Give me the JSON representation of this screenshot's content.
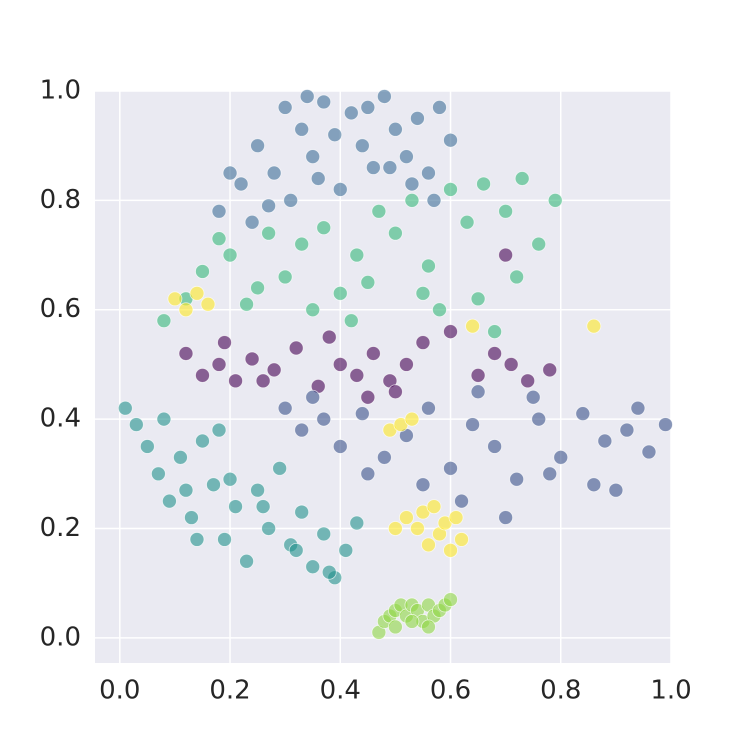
{
  "chart_data": {
    "type": "scatter",
    "xlim": [
      -0.045,
      1.0
    ],
    "ylim": [
      -0.046,
      1.0
    ],
    "xticks": [
      {
        "value": 0,
        "label": "0.0"
      },
      0.2,
      0.4,
      0.6,
      0.8,
      {
        "value": 1,
        "label": "1.0"
      }
    ],
    "yticks": [
      {
        "value": 0,
        "label": "0.0"
      },
      0.2,
      0.4,
      0.6,
      0.8,
      {
        "value": 1,
        "label": "1.0"
      }
    ],
    "grid": true,
    "series": [
      {
        "color": "#3e6e98",
        "x": [
          0.18,
          0.22,
          0.25,
          0.28,
          0.3,
          0.33,
          0.35,
          0.37,
          0.4,
          0.42,
          0.44,
          0.46,
          0.48,
          0.5,
          0.52,
          0.54,
          0.56,
          0.58,
          0.6,
          0.27,
          0.31,
          0.36,
          0.39,
          0.45,
          0.49,
          0.53,
          0.2,
          0.24,
          0.34,
          0.57
        ],
        "values": [
          0.78,
          0.83,
          0.9,
          0.85,
          0.97,
          0.93,
          0.88,
          0.98,
          0.82,
          0.96,
          0.9,
          0.86,
          0.99,
          0.93,
          0.88,
          0.95,
          0.85,
          0.97,
          0.91,
          0.79,
          0.8,
          0.84,
          0.92,
          0.97,
          0.86,
          0.83,
          0.85,
          0.76,
          0.99,
          0.8
        ]
      },
      {
        "color": "#35b779",
        "x": [
          0.08,
          0.12,
          0.15,
          0.2,
          0.23,
          0.27,
          0.3,
          0.33,
          0.37,
          0.4,
          0.43,
          0.47,
          0.5,
          0.53,
          0.56,
          0.6,
          0.63,
          0.66,
          0.7,
          0.73,
          0.76,
          0.79,
          0.25,
          0.35,
          0.45,
          0.55,
          0.65,
          0.72,
          0.18,
          0.42,
          0.58,
          0.68
        ],
        "values": [
          0.58,
          0.62,
          0.67,
          0.7,
          0.61,
          0.74,
          0.66,
          0.72,
          0.75,
          0.63,
          0.7,
          0.78,
          0.74,
          0.8,
          0.68,
          0.82,
          0.76,
          0.83,
          0.78,
          0.84,
          0.72,
          0.8,
          0.64,
          0.6,
          0.65,
          0.63,
          0.62,
          0.66,
          0.73,
          0.58,
          0.6,
          0.56
        ]
      },
      {
        "color": "#440154",
        "x": [
          0.12,
          0.15,
          0.18,
          0.21,
          0.24,
          0.28,
          0.32,
          0.36,
          0.4,
          0.43,
          0.46,
          0.49,
          0.52,
          0.55,
          0.6,
          0.65,
          0.68,
          0.71,
          0.74,
          0.78,
          0.19,
          0.45,
          0.5,
          0.7,
          0.26,
          0.38
        ],
        "values": [
          0.52,
          0.48,
          0.5,
          0.47,
          0.51,
          0.49,
          0.53,
          0.46,
          0.5,
          0.48,
          0.52,
          0.47,
          0.5,
          0.54,
          0.56,
          0.48,
          0.52,
          0.5,
          0.47,
          0.49,
          0.54,
          0.44,
          0.45,
          0.7,
          0.47,
          0.55
        ]
      },
      {
        "color": "#3b528b",
        "x": [
          0.3,
          0.33,
          0.37,
          0.4,
          0.44,
          0.48,
          0.52,
          0.56,
          0.6,
          0.64,
          0.68,
          0.72,
          0.76,
          0.8,
          0.84,
          0.88,
          0.92,
          0.96,
          0.99,
          0.62,
          0.7,
          0.78,
          0.86,
          0.94,
          0.55,
          0.65,
          0.75,
          0.45,
          0.35,
          0.9
        ],
        "values": [
          0.42,
          0.38,
          0.4,
          0.35,
          0.41,
          0.33,
          0.37,
          0.42,
          0.31,
          0.39,
          0.35,
          0.29,
          0.4,
          0.33,
          0.41,
          0.36,
          0.38,
          0.34,
          0.39,
          0.25,
          0.22,
          0.3,
          0.28,
          0.42,
          0.28,
          0.45,
          0.44,
          0.3,
          0.44,
          0.27
        ]
      },
      {
        "color": "#21918c",
        "x": [
          0.01,
          0.03,
          0.05,
          0.07,
          0.09,
          0.11,
          0.13,
          0.15,
          0.17,
          0.19,
          0.21,
          0.23,
          0.25,
          0.27,
          0.29,
          0.31,
          0.33,
          0.35,
          0.37,
          0.39,
          0.41,
          0.43,
          0.08,
          0.14,
          0.2,
          0.26,
          0.32,
          0.38,
          0.12,
          0.18
        ],
        "values": [
          0.42,
          0.39,
          0.35,
          0.3,
          0.25,
          0.33,
          0.22,
          0.36,
          0.28,
          0.18,
          0.24,
          0.14,
          0.27,
          0.2,
          0.31,
          0.17,
          0.23,
          0.13,
          0.19,
          0.11,
          0.16,
          0.21,
          0.4,
          0.18,
          0.29,
          0.24,
          0.16,
          0.12,
          0.27,
          0.38
        ]
      },
      {
        "color": "#8fd744",
        "x": [
          0.47,
          0.48,
          0.49,
          0.5,
          0.51,
          0.52,
          0.53,
          0.54,
          0.55,
          0.56,
          0.57,
          0.58,
          0.59,
          0.6,
          0.5,
          0.53,
          0.56
        ],
        "values": [
          0.01,
          0.03,
          0.04,
          0.05,
          0.06,
          0.04,
          0.06,
          0.05,
          0.03,
          0.06,
          0.04,
          0.05,
          0.06,
          0.07,
          0.02,
          0.03,
          0.02
        ]
      },
      {
        "color": "#fde725",
        "x": [
          0.1,
          0.12,
          0.14,
          0.16,
          0.49,
          0.51,
          0.53,
          0.52,
          0.54,
          0.56,
          0.58,
          0.6,
          0.62,
          0.55,
          0.57,
          0.59,
          0.61,
          0.5,
          0.64,
          0.86
        ],
        "values": [
          0.62,
          0.6,
          0.63,
          0.61,
          0.38,
          0.39,
          0.4,
          0.22,
          0.2,
          0.17,
          0.19,
          0.16,
          0.18,
          0.23,
          0.24,
          0.21,
          0.22,
          0.2,
          0.57,
          0.57
        ]
      }
    ]
  }
}
